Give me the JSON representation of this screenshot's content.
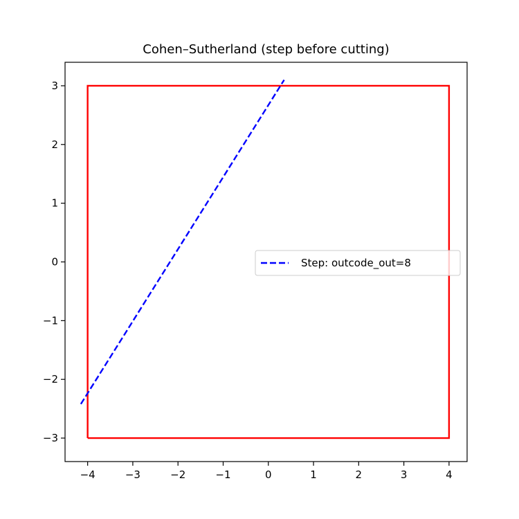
{
  "chart_data": {
    "type": "line",
    "title": "Cohen–Sutherland (step before cutting)",
    "xlabel": "",
    "ylabel": "",
    "xlim": [
      -4.5,
      4.4
    ],
    "ylim": [
      -3.4,
      3.4
    ],
    "xticks": [
      -4,
      -3,
      -2,
      -1,
      0,
      1,
      2,
      3,
      4
    ],
    "xtick_labels": [
      "−4",
      "−3",
      "−2",
      "−1",
      "0",
      "1",
      "2",
      "3",
      "4"
    ],
    "yticks": [
      -3,
      -2,
      -1,
      0,
      1,
      2,
      3
    ],
    "ytick_labels": [
      "−3",
      "−2",
      "−1",
      "0",
      "1",
      "2",
      "3"
    ],
    "grid": false,
    "legend_position": "center-right",
    "series": [
      {
        "name": "",
        "role": "clip-window",
        "color": "#ff0000",
        "style": "solid",
        "x": [
          -4,
          4,
          4,
          -4,
          -4
        ],
        "y": [
          -3,
          -3,
          3,
          3,
          -3
        ]
      },
      {
        "name": "Step: outcode_out=8",
        "role": "segment",
        "color": "#0000ff",
        "style": "dashed",
        "x": [
          -4.15,
          0.35
        ],
        "y": [
          -2.42,
          3.1
        ]
      }
    ]
  }
}
